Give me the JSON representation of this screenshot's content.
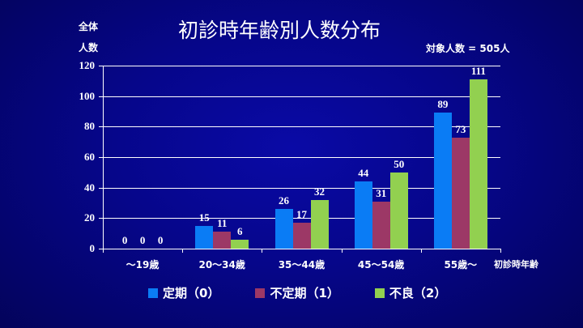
{
  "header": {
    "title": "初診時年齢別人数分布",
    "ylabel_line1": "全体",
    "ylabel_line2": "人数",
    "total": "対象人数 = 505人",
    "xlabel": "初診時年齢"
  },
  "colors": {
    "series0": "#0a7cf5",
    "series1": "#9c3866",
    "series2": "#92d050",
    "background": "#06068a"
  },
  "legend": [
    {
      "label": "定期（0）",
      "color": "#0a7cf5"
    },
    {
      "label": "不定期（1）",
      "color": "#9c3866"
    },
    {
      "label": "不良（2）",
      "color": "#92d050"
    }
  ],
  "yticks": [
    "0",
    "20",
    "40",
    "60",
    "80",
    "100",
    "120"
  ],
  "chart_data": {
    "type": "bar",
    "title": "初診時年齢別人数分布",
    "subtitle": "対象人数 = 505人",
    "xlabel": "初診時年齢",
    "ylabel": "全体人数",
    "ylim": [
      0,
      120
    ],
    "yticks": [
      0,
      20,
      40,
      60,
      80,
      100,
      120
    ],
    "grid": true,
    "legend_position": "bottom",
    "categories": [
      "〜19歳",
      "20〜34歳",
      "35〜44歳",
      "45〜54歳",
      "55歳〜"
    ],
    "series": [
      {
        "name": "定期（0）",
        "color": "#0a7cf5",
        "values": [
          0,
          15,
          26,
          44,
          89
        ]
      },
      {
        "name": "不定期（1）",
        "color": "#9c3866",
        "values": [
          0,
          11,
          17,
          31,
          73
        ]
      },
      {
        "name": "不良（2）",
        "color": "#92d050",
        "values": [
          0,
          6,
          32,
          50,
          111
        ]
      }
    ]
  }
}
